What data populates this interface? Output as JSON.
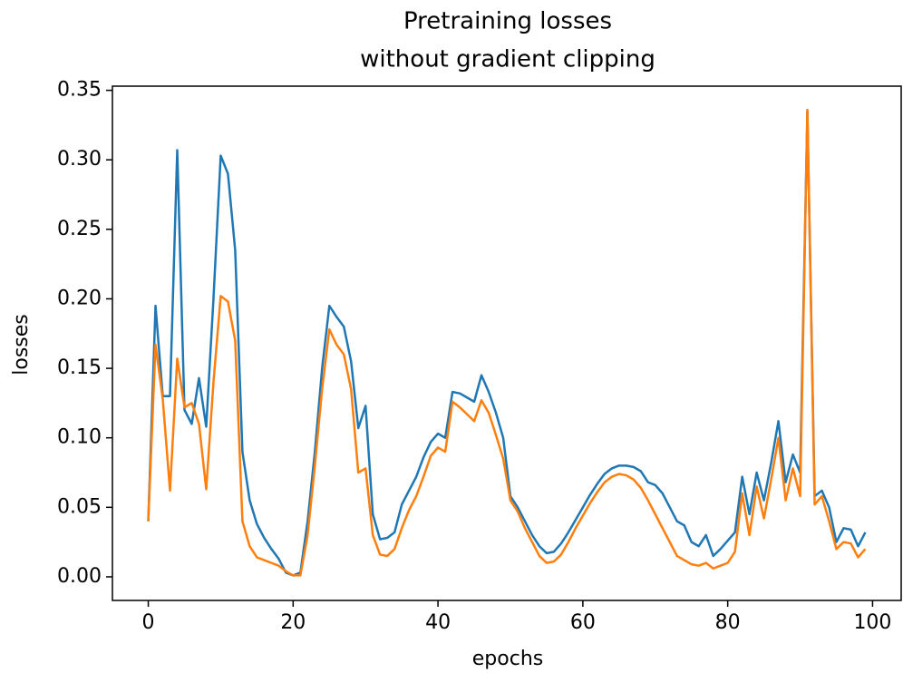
{
  "chart_data": {
    "type": "line",
    "title": [
      "Pretraining losses",
      "without gradient clipping"
    ],
    "xlabel": "epochs",
    "ylabel": "losses",
    "x": [
      0,
      1,
      2,
      3,
      4,
      5,
      6,
      7,
      8,
      9,
      10,
      11,
      12,
      13,
      14,
      15,
      16,
      17,
      18,
      19,
      20,
      21,
      22,
      23,
      24,
      25,
      26,
      27,
      28,
      29,
      30,
      31,
      32,
      33,
      34,
      35,
      36,
      37,
      38,
      39,
      40,
      41,
      42,
      43,
      44,
      45,
      46,
      47,
      48,
      49,
      50,
      51,
      52,
      53,
      54,
      55,
      56,
      57,
      58,
      59,
      60,
      61,
      62,
      63,
      64,
      65,
      66,
      67,
      68,
      69,
      70,
      71,
      72,
      73,
      74,
      75,
      76,
      77,
      78,
      79,
      80,
      81,
      82,
      83,
      84,
      85,
      86,
      87,
      88,
      89,
      90,
      91,
      92,
      93,
      94,
      95,
      96,
      97,
      98,
      99
    ],
    "series": [
      {
        "color": "#1f77b4",
        "values": [
          0.04,
          0.195,
          0.13,
          0.13,
          0.307,
          0.12,
          0.11,
          0.143,
          0.108,
          0.2,
          0.303,
          0.29,
          0.235,
          0.09,
          0.055,
          0.038,
          0.028,
          0.02,
          0.013,
          0.003,
          0.001,
          0.003,
          0.04,
          0.09,
          0.15,
          0.195,
          0.187,
          0.18,
          0.155,
          0.107,
          0.123,
          0.045,
          0.027,
          0.028,
          0.032,
          0.052,
          0.062,
          0.072,
          0.086,
          0.097,
          0.103,
          0.1,
          0.133,
          0.132,
          0.129,
          0.126,
          0.145,
          0.133,
          0.118,
          0.1,
          0.058,
          0.05,
          0.04,
          0.03,
          0.022,
          0.017,
          0.018,
          0.024,
          0.032,
          0.041,
          0.05,
          0.059,
          0.067,
          0.074,
          0.078,
          0.08,
          0.08,
          0.079,
          0.076,
          0.068,
          0.066,
          0.06,
          0.05,
          0.04,
          0.037,
          0.025,
          0.022,
          0.03,
          0.015,
          0.02,
          0.026,
          0.032,
          0.072,
          0.045,
          0.075,
          0.055,
          0.082,
          0.112,
          0.068,
          0.088,
          0.075,
          0.335,
          0.058,
          0.062,
          0.05,
          0.025,
          0.035,
          0.034,
          0.022,
          0.032
        ]
      },
      {
        "color": "#ff7f0e",
        "values": [
          0.04,
          0.167,
          0.128,
          0.062,
          0.157,
          0.122,
          0.125,
          0.11,
          0.063,
          0.14,
          0.202,
          0.198,
          0.17,
          0.04,
          0.022,
          0.014,
          0.012,
          0.01,
          0.008,
          0.004,
          0.001,
          0.001,
          0.03,
          0.08,
          0.135,
          0.178,
          0.167,
          0.16,
          0.135,
          0.075,
          0.078,
          0.03,
          0.016,
          0.015,
          0.02,
          0.035,
          0.048,
          0.058,
          0.072,
          0.087,
          0.093,
          0.09,
          0.126,
          0.122,
          0.117,
          0.112,
          0.127,
          0.118,
          0.102,
          0.085,
          0.055,
          0.047,
          0.035,
          0.025,
          0.015,
          0.01,
          0.011,
          0.016,
          0.025,
          0.035,
          0.044,
          0.053,
          0.061,
          0.068,
          0.072,
          0.074,
          0.073,
          0.07,
          0.064,
          0.055,
          0.045,
          0.035,
          0.025,
          0.015,
          0.012,
          0.009,
          0.008,
          0.01,
          0.006,
          0.008,
          0.01,
          0.018,
          0.06,
          0.03,
          0.065,
          0.042,
          0.07,
          0.1,
          0.055,
          0.078,
          0.058,
          0.336,
          0.052,
          0.058,
          0.04,
          0.02,
          0.025,
          0.024,
          0.014,
          0.02
        ]
      }
    ],
    "xlim": [
      -4.95,
      103.95
    ],
    "ylim": [
      -0.017,
      0.353
    ],
    "xticks": [
      0,
      20,
      40,
      60,
      80,
      100
    ],
    "yticks": [
      {
        "value": 0,
        "label": "0.00"
      },
      {
        "value": 0.05,
        "label": "0.05"
      },
      {
        "value": 0.1,
        "label": "0.10"
      },
      {
        "value": 0.15,
        "label": "0.15"
      },
      {
        "value": 0.2,
        "label": "0.20"
      },
      {
        "value": 0.25,
        "label": "0.25"
      },
      {
        "value": 0.3,
        "label": "0.30"
      },
      {
        "value": 0.35,
        "label": "0.35"
      }
    ]
  }
}
